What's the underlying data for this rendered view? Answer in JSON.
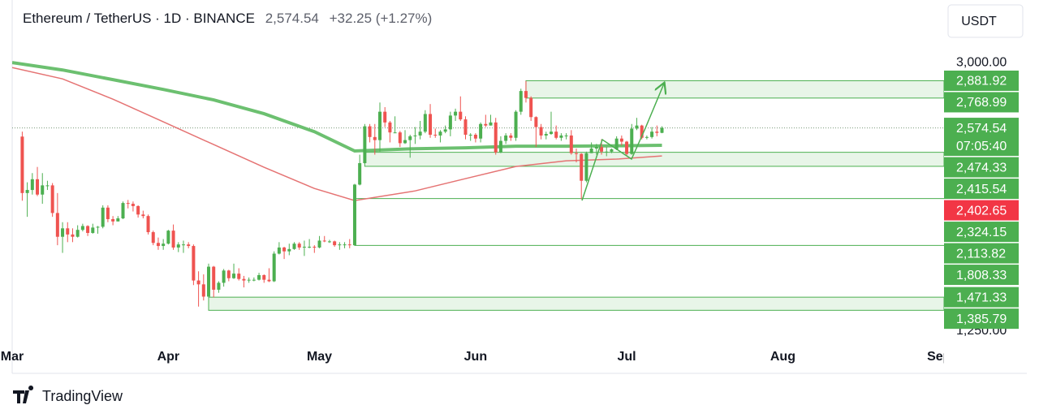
{
  "header": {
    "symbol": "Ethereum / TetherUS · 1D · BINANCE",
    "change": "+32.25 (+1.27%)",
    "currency": "USDT"
  },
  "chart_data": {
    "type": "candlestick",
    "up_color": "#4caf50",
    "down_color": "#ef5350",
    "open": [
      2518,
      2150,
      2170,
      2240,
      2140,
      2200,
      2200,
      2020,
      1865,
      1920,
      1880,
      1865,
      1910,
      1935,
      1890,
      1925,
      1930,
      2055,
      1980,
      1965,
      1985,
      2085,
      2080,
      2065,
      2010,
      2000,
      1895,
      1825,
      1805,
      1820,
      1905,
      1795,
      1815,
      1815,
      1805,
      1580,
      1555,
      1475,
      1670,
      1520,
      1565,
      1645,
      1595,
      1625,
      1590,
      1580,
      1585,
      1585,
      1615,
      1585,
      1575,
      1755,
      1795,
      1770,
      1785,
      1820,
      1795,
      1800,
      1800,
      1795,
      1840,
      1835,
      1835,
      1810,
      1815,
      1815,
      1810,
      2205,
      2345,
      2585,
      2515,
      2495,
      2680,
      2610,
      2545,
      2545,
      2475,
      2495,
      2520,
      2525,
      2550,
      2665,
      2530,
      2525,
      2550,
      2565,
      2655,
      2680,
      2630,
      2530,
      2530,
      2505,
      2600,
      2590,
      2610,
      2415,
      2490,
      2525,
      2510,
      2680,
      2815,
      2770,
      2645,
      2580,
      2525,
      2535,
      2550,
      2510,
      2525,
      2525,
      2410,
      2405,
      2230,
      2410,
      2440,
      2450,
      2420,
      2420,
      2435,
      2505,
      2485,
      2405,
      2570,
      2590,
      2510,
      2515,
      2550,
      2542.29
    ],
    "high": [
      2550,
      2220,
      2280,
      2320,
      2280,
      2230,
      2215,
      2150,
      1960,
      1960,
      1920,
      1940,
      1950,
      1940,
      1950,
      1935,
      2070,
      2070,
      2000,
      2000,
      2095,
      2105,
      2095,
      2070,
      2035,
      2010,
      1905,
      1860,
      1850,
      1910,
      1945,
      1830,
      1840,
      1830,
      1815,
      1640,
      1620,
      1690,
      1675,
      1575,
      1655,
      1650,
      1690,
      1660,
      1610,
      1600,
      1600,
      1630,
      1620,
      1660,
      1770,
      1830,
      1800,
      1820,
      1830,
      1830,
      1840,
      1850,
      1810,
      1870,
      1870,
      1845,
      1840,
      1830,
      1830,
      1850,
      2210,
      2400,
      2600,
      2600,
      2600,
      2740,
      2710,
      2620,
      2650,
      2555,
      2560,
      2530,
      2580,
      2620,
      2690,
      2730,
      2570,
      2560,
      2590,
      2680,
      2700,
      2780,
      2650,
      2540,
      2540,
      2610,
      2660,
      2660,
      2640,
      2520,
      2540,
      2540,
      2690,
      2830,
      2880,
      2780,
      2650,
      2600,
      2550,
      2680,
      2590,
      2540,
      2540,
      2560,
      2440,
      2410,
      2420,
      2480,
      2470,
      2500,
      2450,
      2440,
      2520,
      2525,
      2490,
      2600,
      2640,
      2595,
      2525,
      2580,
      2590,
      2585
    ],
    "low": [
      2100,
      1995,
      2140,
      2130,
      2080,
      2170,
      1995,
      1810,
      1760,
      1830,
      1830,
      1860,
      1900,
      1870,
      1885,
      1885,
      1920,
      1960,
      1940,
      1965,
      1980,
      2050,
      2030,
      1990,
      1985,
      1880,
      1810,
      1780,
      1780,
      1815,
      1780,
      1765,
      1760,
      1790,
      1550,
      1410,
      1450,
      1385,
      1470,
      1500,
      1540,
      1575,
      1590,
      1580,
      1535,
      1565,
      1575,
      1580,
      1565,
      1570,
      1570,
      1750,
      1720,
      1745,
      1780,
      1780,
      1740,
      1790,
      1760,
      1790,
      1830,
      1825,
      1800,
      1780,
      1790,
      1790,
      1805,
      2200,
      2340,
      2480,
      2400,
      2420,
      2580,
      2480,
      2540,
      2450,
      2470,
      2380,
      2470,
      2500,
      2540,
      2510,
      2510,
      2480,
      2540,
      2520,
      2620,
      2620,
      2500,
      2490,
      2480,
      2480,
      2580,
      2590,
      2400,
      2410,
      2470,
      2490,
      2490,
      2660,
      2740,
      2620,
      2450,
      2500,
      2500,
      2530,
      2500,
      2490,
      2500,
      2400,
      2350,
      2110,
      2220,
      2410,
      2400,
      2400,
      2390,
      2410,
      2430,
      2460,
      2390,
      2400,
      2560,
      2500,
      2500,
      2505,
      2520,
      2540
    ],
    "close": [
      2150,
      2170,
      2240,
      2140,
      2200,
      2200,
      2020,
      1865,
      1920,
      1880,
      1865,
      1910,
      1935,
      1890,
      1925,
      1930,
      2055,
      1980,
      1965,
      1985,
      2085,
      2080,
      2065,
      2010,
      2000,
      1895,
      1825,
      1805,
      1820,
      1905,
      1795,
      1815,
      1815,
      1805,
      1580,
      1555,
      1475,
      1670,
      1520,
      1565,
      1645,
      1595,
      1625,
      1590,
      1580,
      1585,
      1585,
      1615,
      1585,
      1575,
      1755,
      1795,
      1770,
      1785,
      1820,
      1795,
      1800,
      1800,
      1795,
      1840,
      1835,
      1835,
      1810,
      1815,
      1815,
      1810,
      2205,
      2345,
      2585,
      2515,
      2495,
      2680,
      2610,
      2545,
      2545,
      2475,
      2495,
      2520,
      2525,
      2550,
      2665,
      2530,
      2525,
      2550,
      2565,
      2655,
      2680,
      2630,
      2530,
      2530,
      2505,
      2600,
      2590,
      2610,
      2415,
      2490,
      2525,
      2510,
      2680,
      2815,
      2770,
      2645,
      2580,
      2525,
      2535,
      2550,
      2510,
      2525,
      2525,
      2410,
      2405,
      2230,
      2410,
      2440,
      2450,
      2420,
      2420,
      2435,
      2505,
      2485,
      2405,
      2570,
      2590,
      2510,
      2515,
      2550,
      2542.29,
      2574.54
    ],
    "xlim": [
      -2,
      183
    ],
    "xticks": [
      {
        "value": -2,
        "label": "Mar"
      },
      {
        "value": 29,
        "label": "Apr"
      },
      {
        "value": 59,
        "label": "May"
      },
      {
        "value": 90,
        "label": "Jun"
      },
      {
        "value": 120,
        "label": "Jul"
      },
      {
        "value": 151,
        "label": "Aug"
      },
      {
        "value": 182,
        "label": "Sep"
      }
    ],
    "ylim": [
      1160,
      3170
    ],
    "yticks": [
      {
        "value": 1250,
        "label": "1,250.00"
      },
      {
        "value": 3000,
        "label": "3,000.00"
      }
    ],
    "current_price": {
      "value": 2574.54,
      "label": "2,574.54",
      "color": "#4caf50"
    },
    "countdown": "07:05:40",
    "levels": [
      {
        "value": 2881.92,
        "label": "2,881.92",
        "color": "#4caf50"
      },
      {
        "value": 2768.99,
        "label": "2,768.99",
        "color": "#4caf50"
      },
      {
        "value": 2474.33,
        "label": "2,474.33",
        "color": "#4caf50"
      },
      {
        "value": 2415.54,
        "label": "2,415.54",
        "color": "#4caf50"
      },
      {
        "value": 2402.65,
        "label": "2,402.65",
        "color": "#f23645"
      },
      {
        "value": 2324.15,
        "label": "2,324.15",
        "color": "#4caf50"
      },
      {
        "value": 2113.82,
        "label": "2,113.82",
        "color": "#4caf50"
      },
      {
        "value": 1808.33,
        "label": "1,808.33",
        "color": "#4caf50"
      },
      {
        "value": 1471.33,
        "label": "1,471.33",
        "color": "#4caf50"
      },
      {
        "value": 1385.79,
        "label": "1,385.79",
        "color": "#4caf50"
      }
    ],
    "moving_averages": [
      {
        "color": "#6cc070",
        "x": [
          -2,
          8,
          18,
          28,
          38,
          48,
          58,
          66,
          78,
          88,
          98,
          108,
          118,
          127
        ],
        "values": [
          3000,
          2952,
          2889,
          2825,
          2757,
          2667,
          2550,
          2424,
          2439,
          2445,
          2455,
          2455,
          2458,
          2461
        ]
      },
      {
        "color": "#e57373",
        "x": [
          -2,
          8,
          18,
          28,
          38,
          48,
          58,
          66,
          78,
          88,
          98,
          108,
          118,
          127
        ],
        "values": [
          2968,
          2894,
          2762,
          2614,
          2466,
          2318,
          2180,
          2101,
          2164,
          2244,
          2323,
          2360,
          2371,
          2392
        ]
      }
    ]
  },
  "footer": {
    "brand": "TradingView"
  }
}
